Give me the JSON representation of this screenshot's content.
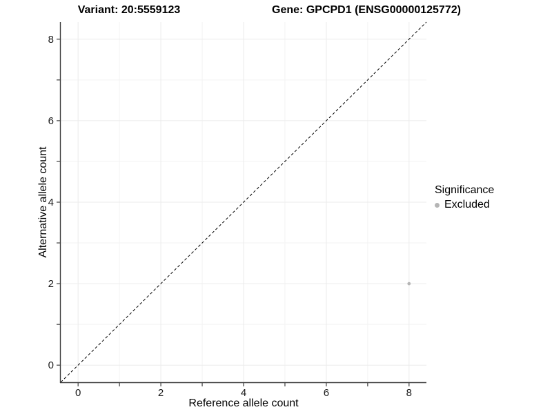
{
  "chart_data": {
    "type": "scatter",
    "title_left": "Variant: 20:5559123",
    "title_right": "Gene: GPCPD1 (ENSG00000125772)",
    "xlabel": "Reference allele count",
    "ylabel": "Alternative allele count",
    "xlim": [
      -0.42,
      8.42
    ],
    "ylim": [
      -0.42,
      8.42
    ],
    "major_ticks": [
      0,
      2,
      4,
      6,
      8
    ],
    "minor_ticks": [
      1,
      3,
      5,
      7
    ],
    "grid": {
      "major_color": "#ebebeb",
      "minor_color": "#f3f3f3",
      "on": true
    },
    "axis_color": "#3c3c3c",
    "identity_line": {
      "style": "dashed",
      "color": "#000000",
      "from": [
        -0.42,
        -0.42
      ],
      "to": [
        8.42,
        8.42
      ]
    },
    "series": [
      {
        "name": "Excluded",
        "color": "#b5b5b5",
        "points": [
          {
            "x": 8,
            "y": 2
          }
        ]
      }
    ],
    "legend": {
      "title": "Significance",
      "position": "right",
      "items": [
        {
          "label": "Excluded",
          "color": "#b5b5b5"
        }
      ]
    }
  }
}
